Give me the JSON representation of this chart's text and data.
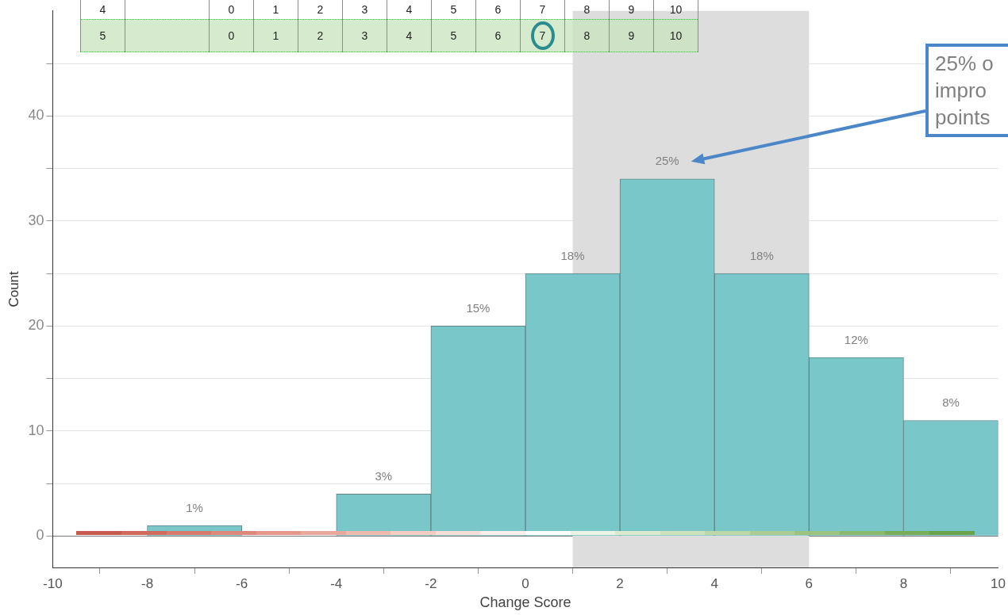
{
  "chart_data": {
    "type": "histogram",
    "xlabel": "Change Score",
    "ylabel": "Count",
    "bins": [
      -10,
      -8,
      -6,
      -4,
      -2,
      0,
      2,
      4,
      6,
      8,
      10
    ],
    "values": [
      0,
      1,
      0,
      4,
      20,
      25,
      34,
      25,
      17,
      11
    ],
    "color": "#7ac7c9",
    "xlim": [
      -10,
      10
    ],
    "xticks": [
      -10,
      -8,
      -6,
      -4,
      -2,
      0,
      2,
      4,
      6,
      8,
      10
    ],
    "ylim": [
      -3,
      50
    ],
    "yticks": [
      0,
      {
        "value": 5,
        "label": null
      },
      10,
      {
        "value": 15,
        "label": null
      },
      20,
      {
        "value": 25,
        "label": null
      },
      30,
      {
        "value": 35,
        "label": null
      },
      40,
      {
        "value": 45,
        "label": null
      }
    ],
    "grid": "y",
    "legend": false,
    "bands": [
      {
        "axis": "x",
        "from": 1,
        "to": 6,
        "color": "#dddddd"
      }
    ],
    "annotations": [
      "4 0 1 2 3 4 5 6 7 8 9 10",
      "5 0 1 2 3 4 5 6 7 8 9 10",
      "25% o impro points",
      {
        "text": "1%",
        "x": -7,
        "y": 1
      },
      {
        "text": "3%",
        "x": -3,
        "y": 4
      },
      {
        "text": "15%",
        "x": -1,
        "y": 20
      },
      {
        "text": "18%",
        "x": 1,
        "y": 25
      },
      {
        "text": "25%",
        "x": 3,
        "y": 34
      },
      {
        "text": "18%",
        "x": 5,
        "y": 25
      },
      {
        "text": "12%",
        "x": 7,
        "y": 17
      },
      {
        "text": "8%",
        "x": 9,
        "y": 11
      }
    ]
  }
}
